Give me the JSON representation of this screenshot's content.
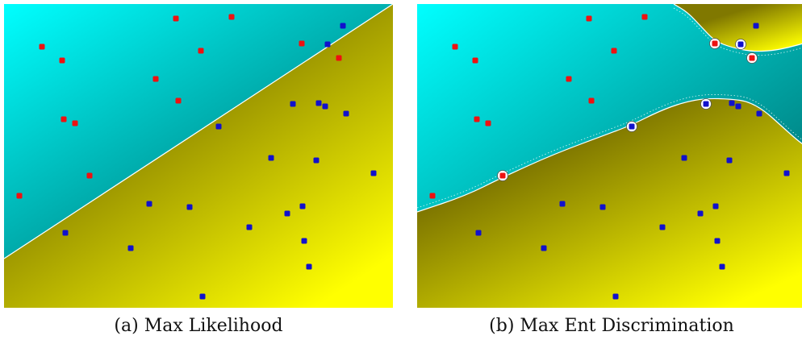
{
  "colors": {
    "class_red": "#ee1111",
    "class_blue": "#1111cc",
    "region_red_light": "#00ffff",
    "region_red_dark": "#008888",
    "region_blue_dark": "#807800",
    "region_blue_light": "#ffff00",
    "boundary": "#ffffff",
    "support_ring": "#ffffff"
  },
  "chart_data": [
    {
      "type": "scatter",
      "caption": "(a) Max Likelihood",
      "xlim": [
        0,
        482
      ],
      "ylim": [
        0,
        377
      ],
      "grid": false,
      "series": [
        {
          "class": "red",
          "points": [
            [
              47,
              53
            ],
            [
              72,
              70
            ],
            [
              213,
              18
            ],
            [
              282,
              16
            ],
            [
              244,
              58
            ],
            [
              188,
              93
            ],
            [
              216,
              120
            ],
            [
              74,
              143
            ],
            [
              88,
              148
            ],
            [
              106,
              213
            ],
            [
              19,
              238
            ],
            [
              369,
              49
            ],
            [
              415,
              67
            ]
          ]
        },
        {
          "class": "blue",
          "points": [
            [
              420,
              27
            ],
            [
              401,
              50
            ],
            [
              358,
              124
            ],
            [
              390,
              123
            ],
            [
              398,
              127
            ],
            [
              424,
              136
            ],
            [
              266,
              152
            ],
            [
              331,
              191
            ],
            [
              387,
              194
            ],
            [
              458,
              210
            ],
            [
              180,
              248
            ],
            [
              230,
              252
            ],
            [
              370,
              251
            ],
            [
              351,
              260
            ],
            [
              304,
              277
            ],
            [
              76,
              284
            ],
            [
              372,
              294
            ],
            [
              157,
              303
            ],
            [
              378,
              326
            ],
            [
              246,
              363
            ]
          ]
        }
      ],
      "boundary": {
        "shape": "linear",
        "points": [
          [
            0,
            316
          ],
          [
            482,
            0
          ]
        ]
      },
      "support_vectors": []
    },
    {
      "type": "scatter",
      "caption": "(b) Max Ent Discrimination",
      "xlim": [
        0,
        482
      ],
      "ylim": [
        0,
        377
      ],
      "grid": false,
      "series": [
        {
          "class": "red",
          "points": [
            [
              47,
              53
            ],
            [
              72,
              70
            ],
            [
              213,
              18
            ],
            [
              282,
              16
            ],
            [
              244,
              58
            ],
            [
              188,
              93
            ],
            [
              216,
              120
            ],
            [
              74,
              143
            ],
            [
              88,
              148
            ],
            [
              106,
              213
            ],
            [
              19,
              238
            ],
            [
              369,
              49
            ],
            [
              415,
              67
            ]
          ]
        },
        {
          "class": "blue",
          "points": [
            [
              420,
              27
            ],
            [
              401,
              50
            ],
            [
              358,
              124
            ],
            [
              390,
              123
            ],
            [
              398,
              127
            ],
            [
              424,
              136
            ],
            [
              266,
              152
            ],
            [
              331,
              191
            ],
            [
              387,
              194
            ],
            [
              458,
              210
            ],
            [
              180,
              248
            ],
            [
              230,
              252
            ],
            [
              370,
              251
            ],
            [
              351,
              260
            ],
            [
              304,
              277
            ],
            [
              76,
              284
            ],
            [
              372,
              294
            ],
            [
              157,
              303
            ],
            [
              378,
              326
            ],
            [
              246,
              363
            ]
          ]
        }
      ],
      "boundary": {
        "shape": "curved",
        "lower_curve": [
          [
            0,
            258
          ],
          [
            60,
            238
          ],
          [
            106,
            215
          ],
          [
            170,
            186
          ],
          [
            240,
            160
          ],
          [
            266,
            150
          ],
          [
            300,
            133
          ],
          [
            330,
            122
          ],
          [
            358,
            117
          ],
          [
            390,
            118
          ],
          [
            410,
            121
          ],
          [
            430,
            132
          ],
          [
            450,
            150
          ],
          [
            470,
            168
          ],
          [
            482,
            177
          ]
        ],
        "upper_curve": [
          [
            318,
            0
          ],
          [
            335,
            10
          ],
          [
            352,
            28
          ],
          [
            369,
            46
          ],
          [
            390,
            54
          ],
          [
            415,
            59
          ],
          [
            440,
            58
          ],
          [
            460,
            54
          ],
          [
            482,
            48
          ]
        ]
      },
      "support_vectors": [
        [
          106,
          213
        ],
        [
          266,
          152
        ],
        [
          358,
          124
        ],
        [
          369,
          49
        ],
        [
          401,
          50
        ],
        [
          415,
          67
        ]
      ]
    }
  ]
}
